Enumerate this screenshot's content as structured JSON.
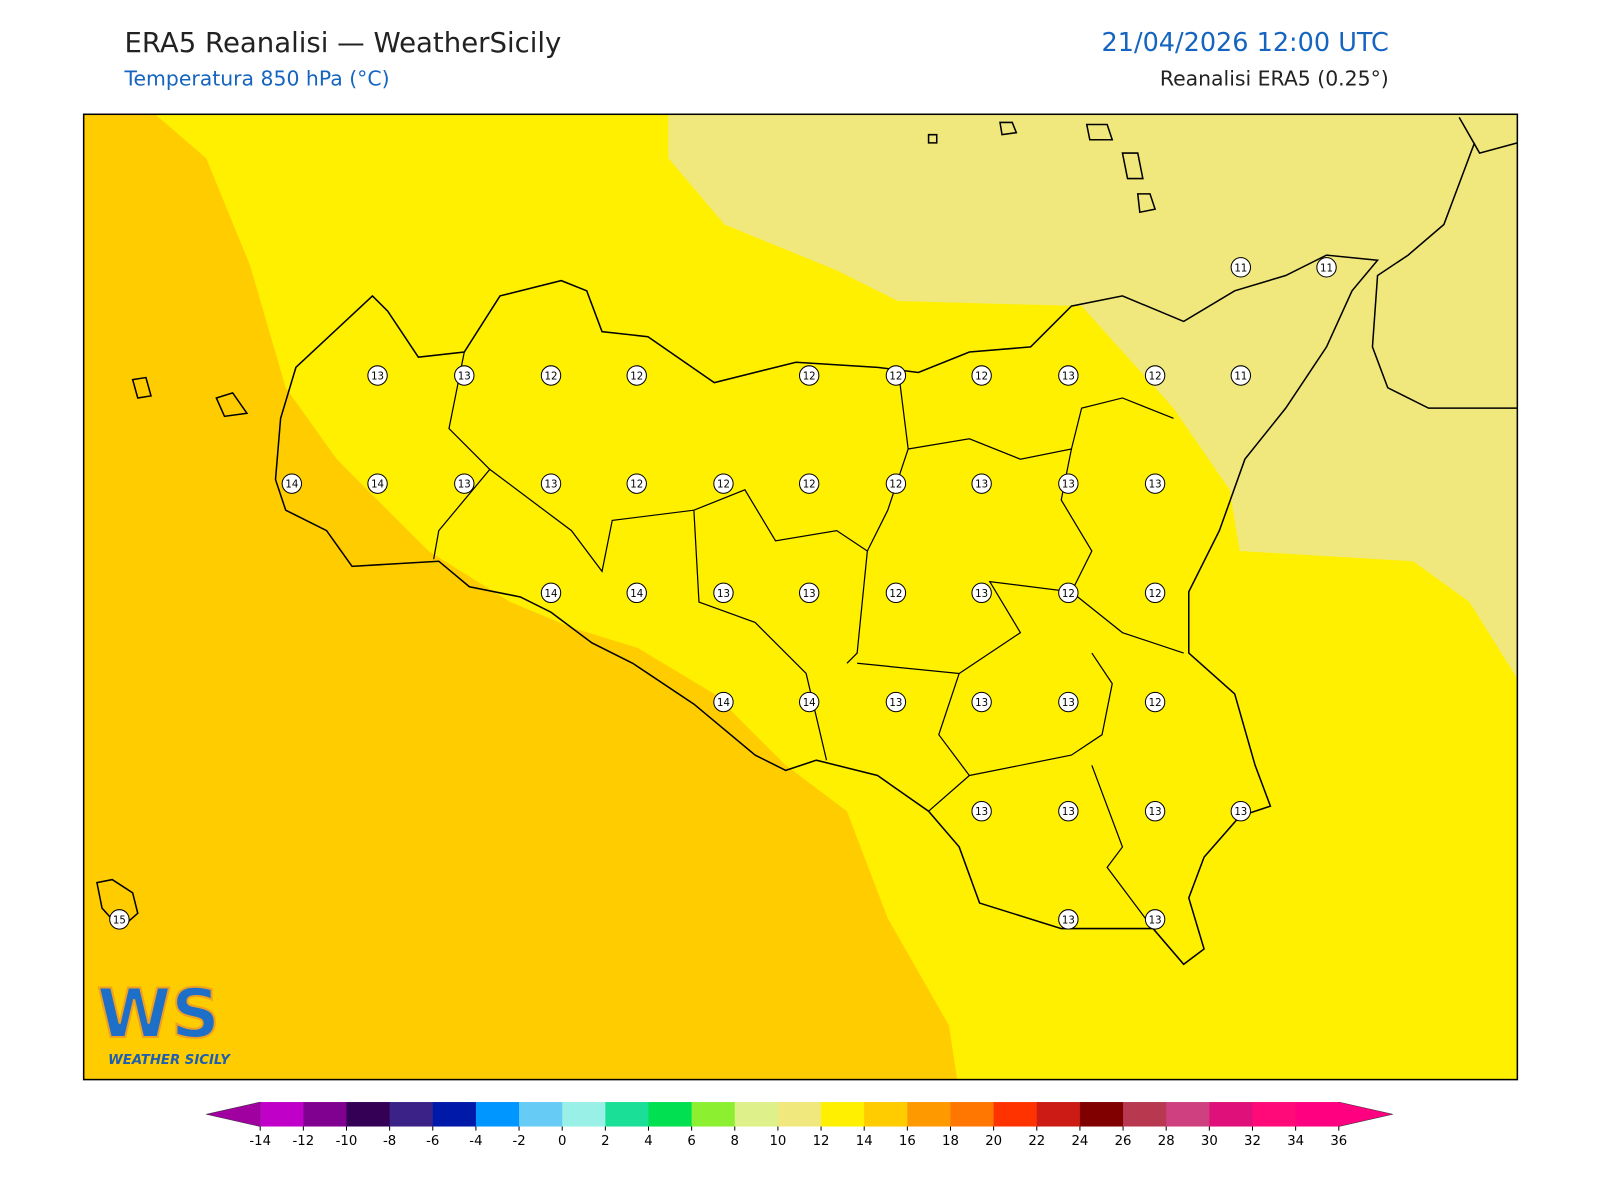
{
  "header": {
    "title": "ERA5 Reanalisi — WeatherSicily",
    "subtitle": "Temperatura 850 hPa (°C)",
    "date": "21/04/2026 12:00 UTC",
    "source": "Reanalisi ERA5 (0.25°)"
  },
  "map": {
    "stations": [
      11,
      11,
      13,
      13,
      12,
      12,
      12,
      12,
      12,
      13,
      12,
      11,
      14,
      14,
      13,
      13,
      12,
      12,
      12,
      12,
      13,
      13,
      13,
      14,
      14,
      13,
      13,
      12,
      13,
      12,
      12,
      14,
      14,
      13,
      13,
      13,
      12,
      13,
      13,
      13,
      13,
      15,
      13,
      13
    ]
  },
  "colorbar": {
    "ticks": [
      -14,
      -12,
      -10,
      -8,
      -6,
      -4,
      -2,
      0,
      2,
      4,
      6,
      8,
      10,
      12,
      14,
      16,
      18,
      20,
      22,
      24,
      26,
      28,
      30,
      32,
      34,
      36
    ],
    "colors": [
      "#c000c8",
      "#800090",
      "#330055",
      "#3b2286",
      "#0019a8",
      "#0096ff",
      "#66ccf5",
      "#99f0e6",
      "#19e096",
      "#00e050",
      "#8cf030",
      "#ddf08a",
      "#f0e87c",
      "#fff000",
      "#ffcc00",
      "#ff9900",
      "#ff7700",
      "#ff3300",
      "#cc1a14",
      "#800000",
      "#b8394f",
      "#cf4080",
      "#e0107a",
      "#ff0a78",
      "#ff0080"
    ],
    "under": "#a000a0",
    "over": "#ff0080"
  },
  "logo": {
    "mark": "WS",
    "name": "WEATHER SICILY"
  }
}
